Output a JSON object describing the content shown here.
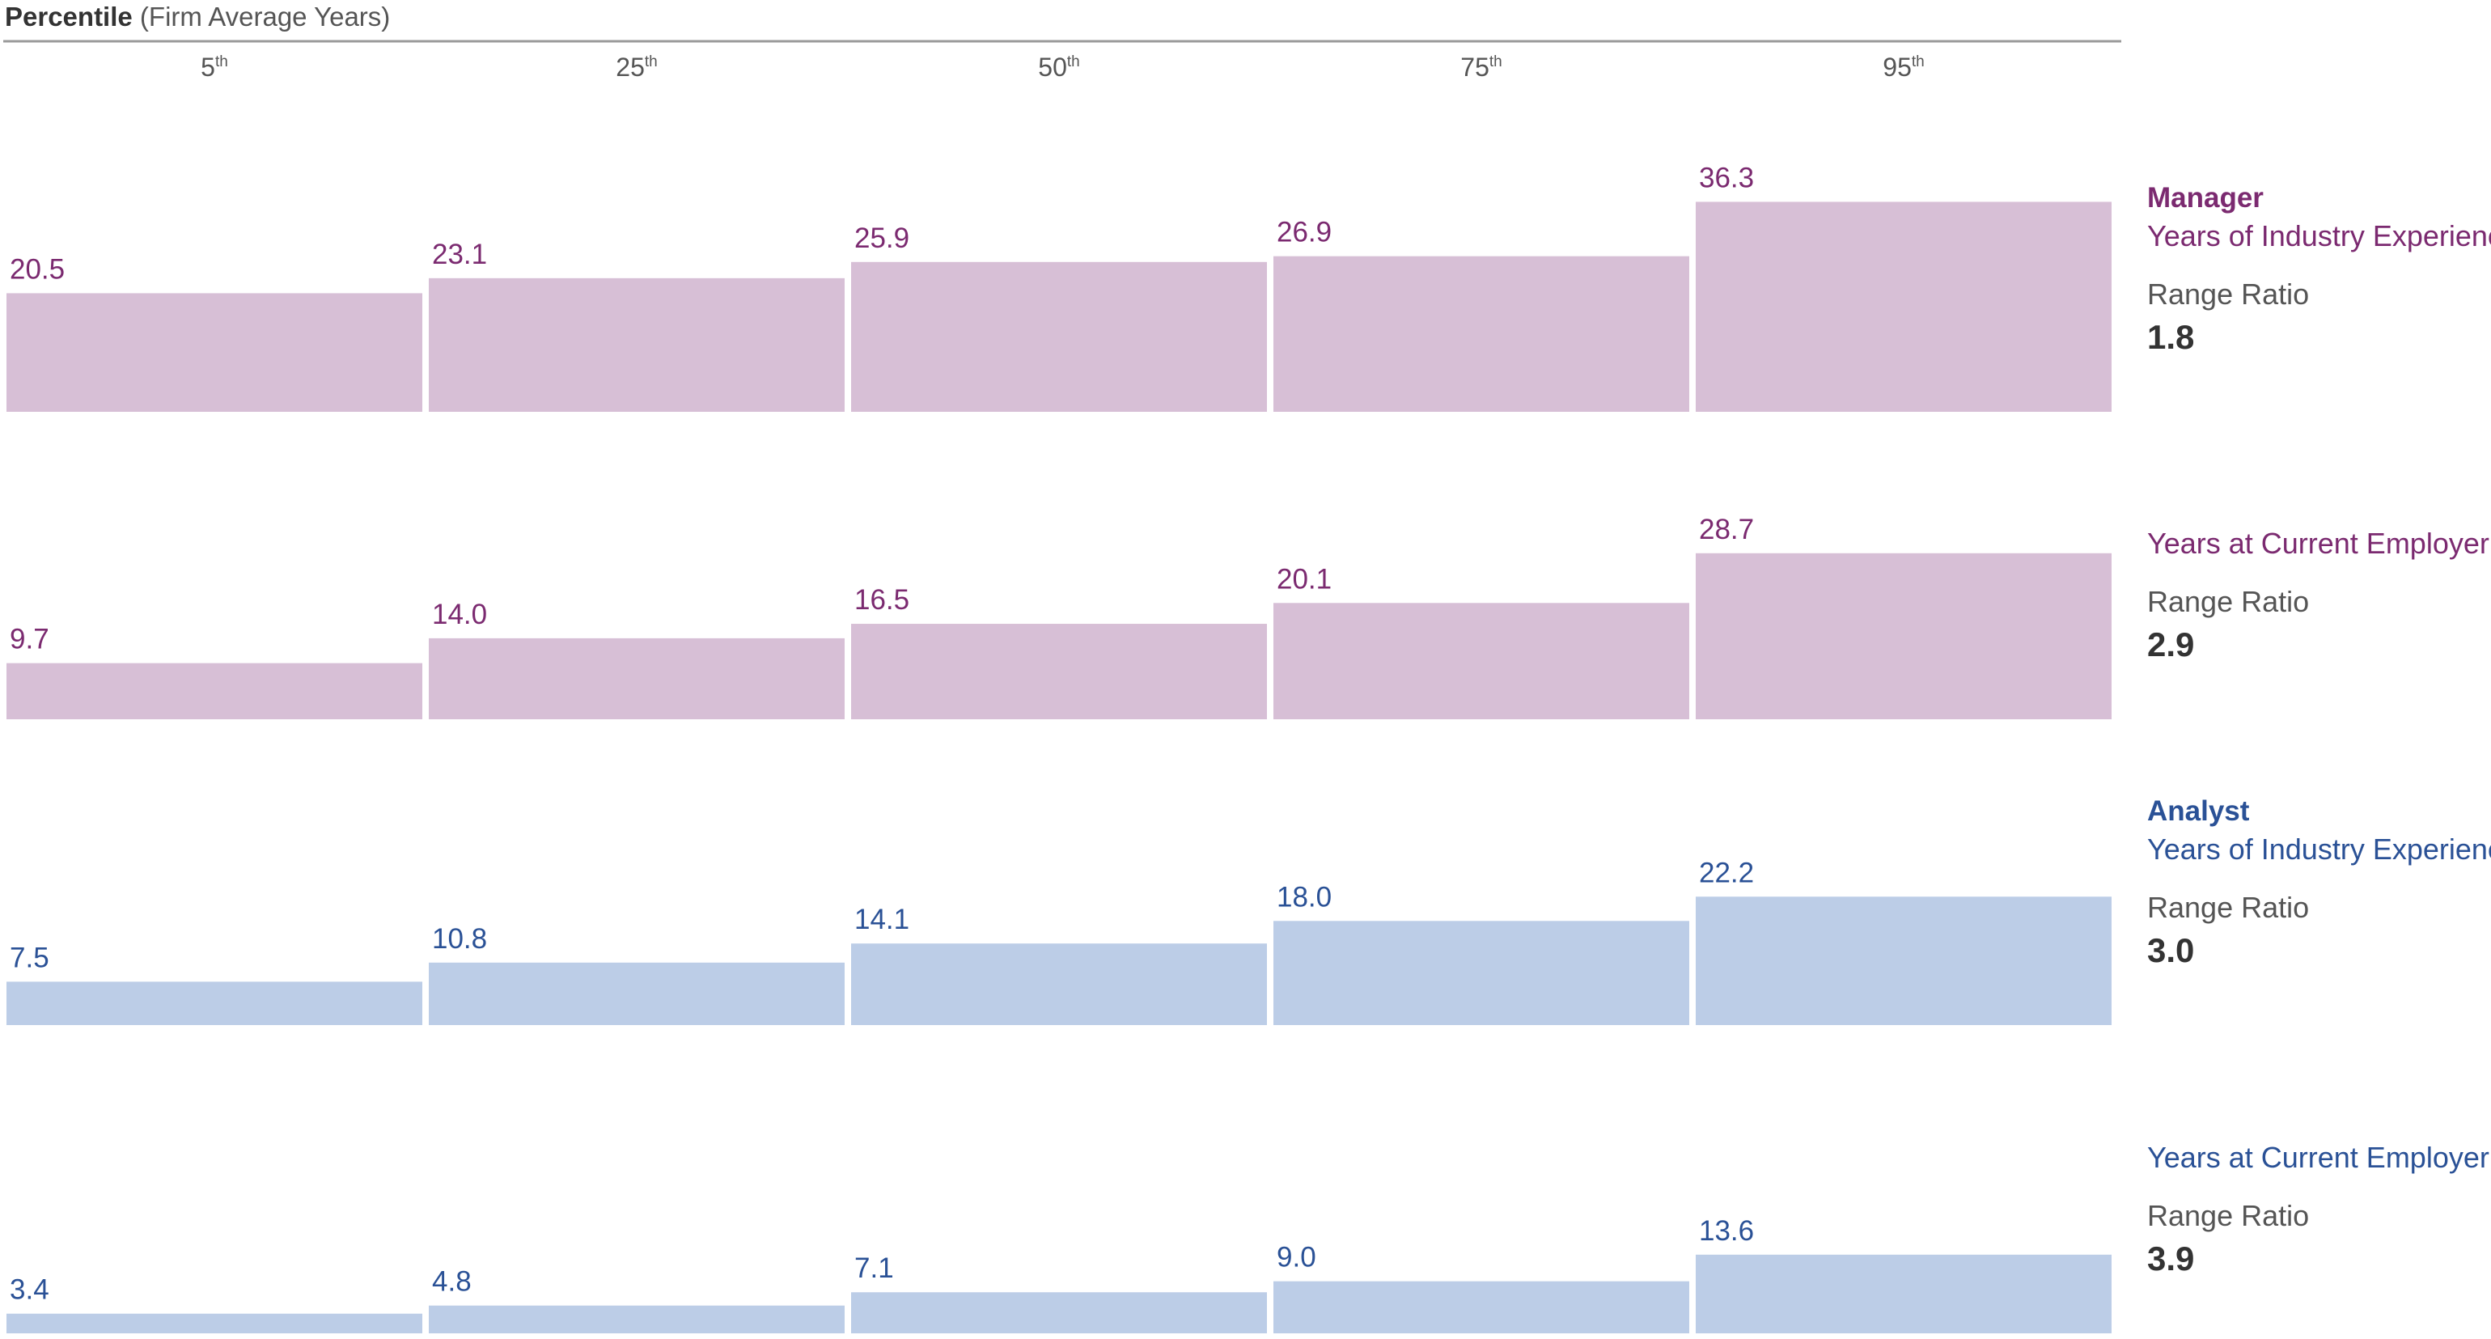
{
  "header": {
    "title_bold": "Percentile",
    "title_rest": " (Firm Average Years)"
  },
  "colors": {
    "manager_bar": "#d7bfd6",
    "manager_text": "#7b2a70",
    "analyst_bar": "#bccde7",
    "analyst_text": "#2a5196",
    "axis": "#999999",
    "label_gray": "#555555",
    "ratio_dark": "#333333"
  },
  "chart_data": [
    {
      "type": "bar",
      "title": "Years of Industry Experience",
      "group": "Manager",
      "color_key": "manager",
      "categories": [
        "5th",
        "25th",
        "50th",
        "75th",
        "95th"
      ],
      "values": [
        20.5,
        23.1,
        25.9,
        26.9,
        36.3
      ],
      "value_labels": [
        "20.5",
        "23.1",
        "25.9",
        "26.9",
        "36.3"
      ],
      "range_ratio_label": "Range Ratio",
      "range_ratio": "1.8"
    },
    {
      "type": "bar",
      "title": "Years at Current Employer",
      "group": "",
      "color_key": "manager",
      "categories": [
        "5th",
        "25th",
        "50th",
        "75th",
        "95th"
      ],
      "values": [
        9.7,
        14.0,
        16.5,
        20.1,
        28.7
      ],
      "value_labels": [
        "9.7",
        "14.0",
        "16.5",
        "20.1",
        "28.7"
      ],
      "range_ratio_label": "Range Ratio",
      "range_ratio": "2.9"
    },
    {
      "type": "bar",
      "title": "Years of Industry Experience",
      "group": "Analyst",
      "color_key": "analyst",
      "categories": [
        "5th",
        "25th",
        "50th",
        "75th",
        "95th"
      ],
      "values": [
        7.5,
        10.8,
        14.1,
        18.0,
        22.2
      ],
      "value_labels": [
        "7.5",
        "10.8",
        "14.1",
        "18.0",
        "22.2"
      ],
      "range_ratio_label": "Range Ratio",
      "range_ratio": "3.0"
    },
    {
      "type": "bar",
      "title": "Years at Current Employer",
      "group": "",
      "color_key": "analyst",
      "categories": [
        "5th",
        "25th",
        "50th",
        "75th",
        "95th"
      ],
      "values": [
        3.4,
        4.8,
        7.1,
        9.0,
        13.6
      ],
      "value_labels": [
        "3.4",
        "4.8",
        "7.1",
        "9.0",
        "13.6"
      ],
      "range_ratio_label": "Range Ratio",
      "range_ratio": "3.9"
    }
  ],
  "percentile_headers": [
    {
      "num": "5",
      "sup": "th"
    },
    {
      "num": "25",
      "sup": "th"
    },
    {
      "num": "50",
      "sup": "th"
    },
    {
      "num": "75",
      "sup": "th"
    },
    {
      "num": "95",
      "sup": "th"
    }
  ]
}
